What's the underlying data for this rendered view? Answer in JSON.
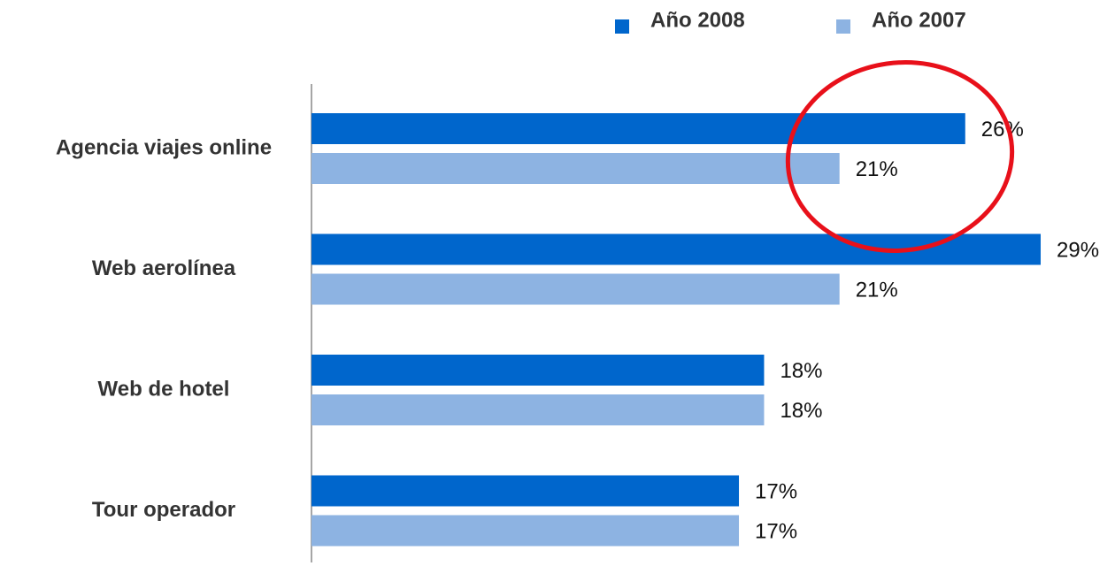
{
  "chart_data": {
    "type": "bar",
    "orientation": "horizontal",
    "categories": [
      "Agencia viajes online",
      "Web aerolínea",
      "Web de hotel",
      "Tour operador"
    ],
    "series": [
      {
        "name": "Año 2008",
        "color": "#0066cc",
        "values": [
          26,
          29,
          18,
          17
        ],
        "value_labels": [
          "26%",
          "29%",
          "18%",
          "17%"
        ]
      },
      {
        "name": "Año 2007",
        "color": "#8db3e2",
        "values": [
          21,
          21,
          18,
          17
        ],
        "value_labels": [
          "21%",
          "21%",
          "18%",
          "17%"
        ]
      }
    ],
    "legend": "top-right"
  }
}
